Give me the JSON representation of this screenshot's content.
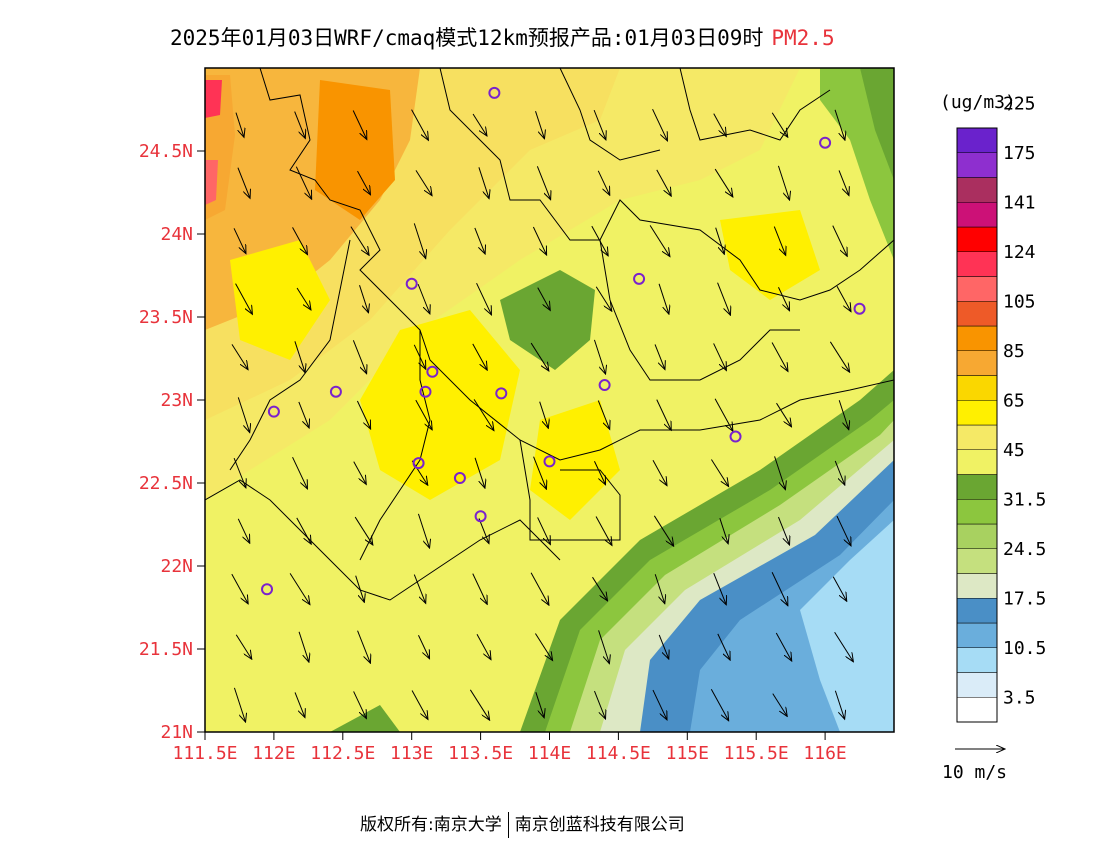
{
  "title": {
    "text": "2025年01月03日WRF/cmaq模式12km预报产品:01月03日09时",
    "variable": "PM2.5"
  },
  "map": {
    "lon_range": [
      111.5,
      116.5
    ],
    "lat_range": [
      21.0,
      25.0
    ],
    "x_tick_labels": [
      "111.5E",
      "112E",
      "112.5E",
      "113E",
      "113.5E",
      "114E",
      "114.5E",
      "115E",
      "115.5E",
      "116E"
    ],
    "y_tick_labels": [
      "21N",
      "21.5N",
      "22N",
      "22.5N",
      "23N",
      "23.5N",
      "24N",
      "24.5N"
    ],
    "label_color": "#e8333b",
    "stations": [
      {
        "lon": 113.6,
        "lat": 24.85
      },
      {
        "lon": 116.0,
        "lat": 24.55
      },
      {
        "lon": 113.0,
        "lat": 23.7
      },
      {
        "lon": 114.65,
        "lat": 23.73
      },
      {
        "lon": 116.25,
        "lat": 23.55
      },
      {
        "lon": 112.45,
        "lat": 23.05
      },
      {
        "lon": 112.0,
        "lat": 22.93
      },
      {
        "lon": 113.1,
        "lat": 23.05
      },
      {
        "lon": 113.15,
        "lat": 23.17
      },
      {
        "lon": 113.65,
        "lat": 23.04
      },
      {
        "lon": 114.4,
        "lat": 23.09
      },
      {
        "lon": 115.35,
        "lat": 22.78
      },
      {
        "lon": 113.05,
        "lat": 22.62
      },
      {
        "lon": 113.35,
        "lat": 22.53
      },
      {
        "lon": 114.0,
        "lat": 22.63
      },
      {
        "lon": 113.5,
        "lat": 22.3
      },
      {
        "lon": 111.95,
        "lat": 21.86
      }
    ]
  },
  "colorbar": {
    "unit": "(ug/m3)",
    "colors": [
      "#ffffff",
      "#daecf8",
      "#a6dcf5",
      "#6aaedc",
      "#4a8fc6",
      "#dde8c5",
      "#c5e07e",
      "#a8d160",
      "#8cc63e",
      "#6aa632",
      "#f0f264",
      "#f5e966",
      "#fff000",
      "#fad700",
      "#f7a832",
      "#f99400",
      "#ee5a28",
      "#ff6666",
      "#ff3355",
      "#ff0000",
      "#cc1177",
      "#aa2f5f",
      "#8e2fcf",
      "#6a22cc"
    ],
    "labels": [
      "3.5",
      "10.5",
      "17.5",
      "24.5",
      "31.5",
      "45",
      "65",
      "85",
      "105",
      "124",
      "141",
      "175",
      "225"
    ]
  },
  "wind_legend": {
    "label": "10 m/s"
  },
  "footer": {
    "left": "版权所有:南京大学",
    "right": "南京创蓝科技有限公司"
  }
}
